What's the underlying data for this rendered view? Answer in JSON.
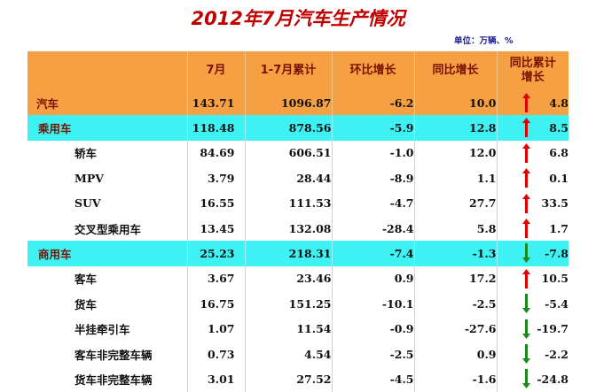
{
  "title": "2012年7月汽车生产情况",
  "unit": "单位：万辆、%",
  "colors": {
    "title": "#c00000",
    "header_bg": "#f6a044",
    "highlight_orange": "#f6a044",
    "highlight_cyan": "#3ef2f4",
    "arrow_up": "#e00000",
    "arrow_down": "#1e8a1e"
  },
  "headers": {
    "blank": "",
    "month": "7月",
    "cumulative": "1-7月累计",
    "mom": "环比增长",
    "yoy": "同比增长",
    "cum_yoy_line1": "同比累计",
    "cum_yoy_line2": "增长"
  },
  "rows": [
    {
      "name": "汽车",
      "month": "143.71",
      "cumulative": "1096.87",
      "mom": "-6.2",
      "yoy": "10.0",
      "cum_yoy": "4.8",
      "arrow": "up-arrow-icon"
    },
    {
      "name": "乘用车",
      "month": "118.48",
      "cumulative": "878.56",
      "mom": "-5.9",
      "yoy": "12.8",
      "cum_yoy": "8.5",
      "arrow": "up-arrow-icon"
    },
    {
      "name": "轿车",
      "month": "84.69",
      "cumulative": "606.51",
      "mom": "-1.0",
      "yoy": "12.0",
      "cum_yoy": "6.8",
      "arrow": "up-arrow-icon"
    },
    {
      "name": "MPV",
      "month": "3.79",
      "cumulative": "28.44",
      "mom": "-8.9",
      "yoy": "1.1",
      "cum_yoy": "0.1",
      "arrow": "up-arrow-icon"
    },
    {
      "name": "SUV",
      "month": "16.55",
      "cumulative": "111.53",
      "mom": "-4.7",
      "yoy": "27.7",
      "cum_yoy": "33.5",
      "arrow": "up-arrow-icon"
    },
    {
      "name": "交叉型乘用车",
      "month": "13.45",
      "cumulative": "132.08",
      "mom": "-28.4",
      "yoy": "5.8",
      "cum_yoy": "1.7",
      "arrow": "up-arrow-icon"
    },
    {
      "name": "商用车",
      "month": "25.23",
      "cumulative": "218.31",
      "mom": "-7.4",
      "yoy": "-1.3",
      "cum_yoy": "-7.8",
      "arrow": "down-arrow-icon"
    },
    {
      "name": "客车",
      "month": "3.67",
      "cumulative": "23.46",
      "mom": "0.9",
      "yoy": "17.2",
      "cum_yoy": "10.5",
      "arrow": "up-arrow-icon"
    },
    {
      "name": "货车",
      "month": "16.75",
      "cumulative": "151.25",
      "mom": "-10.1",
      "yoy": "-2.5",
      "cum_yoy": "-5.4",
      "arrow": "down-arrow-icon"
    },
    {
      "name": "半挂牵引车",
      "month": "1.07",
      "cumulative": "11.54",
      "mom": "-0.9",
      "yoy": "-27.6",
      "cum_yoy": "-19.7",
      "arrow": "down-arrow-icon"
    },
    {
      "name": "客车非完整车辆",
      "month": "0.73",
      "cumulative": "4.54",
      "mom": "-2.5",
      "yoy": "0.9",
      "cum_yoy": "-2.2",
      "arrow": "down-arrow-icon"
    },
    {
      "name": "货车非完整车辆",
      "month": "3.01",
      "cumulative": "27.52",
      "mom": "-4.5",
      "yoy": "-1.6",
      "cum_yoy": "-24.8",
      "arrow": "down-arrow-icon"
    }
  ]
}
